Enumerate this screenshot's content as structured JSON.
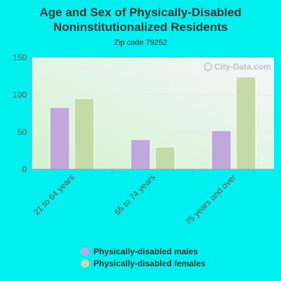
{
  "chart_data": {
    "type": "bar",
    "title_lines": [
      "Age and Sex of Physically-Disabled",
      "Noninstitutionalized Residents"
    ],
    "subtitle": "Zip code 79252",
    "watermark": "City-Data.com",
    "categories": [
      "21 to 64 years",
      "65 to 74 years",
      "75 years and over"
    ],
    "series": [
      {
        "name": "Physically-disabled males",
        "color": "#c0a8dc",
        "values": [
          83,
          40,
          52
        ]
      },
      {
        "name": "Physically-disabled females",
        "color": "#c4dba8",
        "values": [
          95,
          30,
          124
        ]
      }
    ],
    "ylim": [
      0,
      150
    ],
    "yticks": [
      0,
      50,
      100,
      150
    ],
    "grid": true,
    "legend_position": "bottom"
  }
}
